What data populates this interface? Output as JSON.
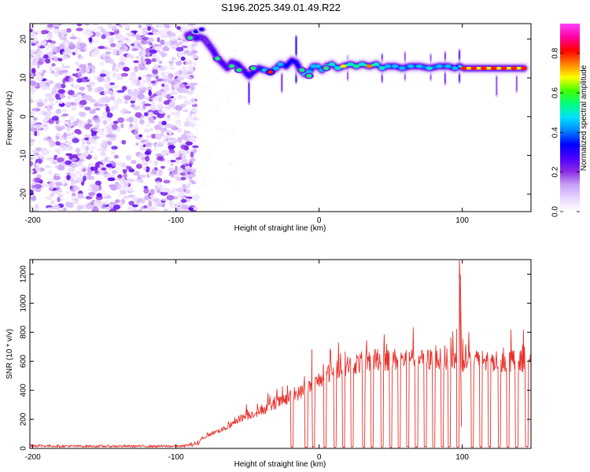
{
  "figure": {
    "title": "S196.2025.349.01.49.R22"
  },
  "chart_data": [
    {
      "type": "heatmap",
      "title": "S196.2025.349.01.49.R22",
      "xlabel": "Height of straight line (km)",
      "ylabel": "Frequency (Hz)",
      "xlim": [
        -202,
        148
      ],
      "ylim": [
        -24.5,
        24
      ],
      "xticks": [
        -200,
        -100,
        0,
        100
      ],
      "xtick_labels": [
        "-200",
        "-100",
        "0",
        "100"
      ],
      "yticks": [
        -20,
        -10,
        0,
        10,
        20
      ],
      "ytick_labels": [
        "-20",
        "-10",
        "0",
        "10",
        "20"
      ],
      "colorbar": {
        "label": "Normalized spectral amplitude",
        "range": [
          0,
          0.95
        ],
        "ticks": [
          0.0,
          0.2,
          0.4,
          0.6,
          0.8
        ],
        "tick_labels": [
          "0.0",
          "0.2",
          "0.4",
          "0.6",
          "0.8"
        ],
        "colormap": [
          "#ffffff",
          "#e8d6ff",
          "#c8a0f8",
          "#8a2be2",
          "#4b00ff",
          "#0000ff",
          "#0080ff",
          "#00e0ff",
          "#00ff80",
          "#40ff00",
          "#ffff00",
          "#ff8000",
          "#ff0000",
          "#ff00a0",
          "#ff40ff"
        ]
      },
      "noise_region": {
        "x_range": [
          -202,
          -92
        ],
        "y_range": [
          -24.5,
          24
        ],
        "mean_amplitude": 0.1
      },
      "ridge": [
        {
          "x": -92,
          "y": 21.0,
          "amp": 0.25
        },
        {
          "x": -88,
          "y": 21.5,
          "amp": 0.3
        },
        {
          "x": -86,
          "y": 20.2,
          "amp": 0.3
        },
        {
          "x": -83,
          "y": 20.5,
          "amp": 0.35
        },
        {
          "x": -80,
          "y": 20.0,
          "amp": 0.2
        },
        {
          "x": -77,
          "y": 18.5,
          "amp": 0.3
        },
        {
          "x": -74,
          "y": 17.0,
          "amp": 0.3
        },
        {
          "x": -71,
          "y": 15.0,
          "amp": 0.35
        },
        {
          "x": -68,
          "y": 14.0,
          "amp": 0.3
        },
        {
          "x": -64,
          "y": 12.5,
          "amp": 0.35
        },
        {
          "x": -61,
          "y": 14.0,
          "amp": 0.3
        },
        {
          "x": -57,
          "y": 13.5,
          "amp": 0.35
        },
        {
          "x": -53,
          "y": 12.0,
          "amp": 0.35
        },
        {
          "x": -49,
          "y": 10.5,
          "amp": 0.35
        },
        {
          "x": -46,
          "y": 11.5,
          "amp": 0.35
        },
        {
          "x": -42,
          "y": 12.5,
          "amp": 0.4
        },
        {
          "x": -38,
          "y": 12.0,
          "amp": 0.45
        },
        {
          "x": -34,
          "y": 11.5,
          "amp": 0.6
        },
        {
          "x": -30,
          "y": 12.5,
          "amp": 0.45
        },
        {
          "x": -27,
          "y": 13.5,
          "amp": 0.45
        },
        {
          "x": -23,
          "y": 13.0,
          "amp": 0.4
        },
        {
          "x": -19,
          "y": 14.5,
          "amp": 0.4
        },
        {
          "x": -16,
          "y": 14.0,
          "amp": 0.4
        },
        {
          "x": -13,
          "y": 12.0,
          "amp": 0.4
        },
        {
          "x": -10,
          "y": 11.0,
          "amp": 0.45
        },
        {
          "x": -7,
          "y": 11.5,
          "amp": 0.45
        },
        {
          "x": -4,
          "y": 13.0,
          "amp": 0.45
        },
        {
          "x": -1,
          "y": 13.0,
          "amp": 0.45
        },
        {
          "x": 2,
          "y": 12.0,
          "amp": 0.45
        },
        {
          "x": 5,
          "y": 13.0,
          "amp": 0.5
        },
        {
          "x": 9,
          "y": 13.5,
          "amp": 0.5
        },
        {
          "x": 13,
          "y": 12.5,
          "amp": 0.5
        },
        {
          "x": 17,
          "y": 13.0,
          "amp": 0.7
        },
        {
          "x": 22,
          "y": 13.5,
          "amp": 0.5
        },
        {
          "x": 26,
          "y": 13.0,
          "amp": 0.55
        },
        {
          "x": 30,
          "y": 13.5,
          "amp": 0.5
        },
        {
          "x": 35,
          "y": 13.0,
          "amp": 0.75
        },
        {
          "x": 40,
          "y": 13.5,
          "amp": 0.5
        },
        {
          "x": 44,
          "y": 12.5,
          "amp": 0.5
        },
        {
          "x": 48,
          "y": 13.0,
          "amp": 0.45
        },
        {
          "x": 53,
          "y": 13.0,
          "amp": 0.45
        },
        {
          "x": 58,
          "y": 12.5,
          "amp": 0.45
        },
        {
          "x": 64,
          "y": 13.0,
          "amp": 0.45
        },
        {
          "x": 70,
          "y": 13.0,
          "amp": 0.45
        },
        {
          "x": 77,
          "y": 12.5,
          "amp": 0.5
        },
        {
          "x": 84,
          "y": 13.0,
          "amp": 0.45
        },
        {
          "x": 90,
          "y": 13.0,
          "amp": 0.45
        },
        {
          "x": 95,
          "y": 12.5,
          "amp": 0.45
        },
        {
          "x": 98,
          "y": 13.0,
          "amp": 0.3
        },
        {
          "x": 101,
          "y": 12.5,
          "amp": 0.8
        },
        {
          "x": 108,
          "y": 12.5,
          "amp": 0.8
        },
        {
          "x": 115,
          "y": 12.5,
          "amp": 0.8
        },
        {
          "x": 122,
          "y": 12.5,
          "amp": 0.8
        },
        {
          "x": 129,
          "y": 12.5,
          "amp": 0.8
        },
        {
          "x": 136,
          "y": 12.5,
          "amp": 0.8
        },
        {
          "x": 143,
          "y": 12.5,
          "amp": 0.8
        }
      ],
      "ridge_blobs": [
        {
          "x": -90,
          "y": 20.3,
          "amp": 0.55
        },
        {
          "x": -86,
          "y": 22.0,
          "amp": 0.35
        },
        {
          "x": -82,
          "y": 22.5,
          "amp": 0.3
        },
        {
          "x": -71,
          "y": 15.0,
          "amp": 0.55
        },
        {
          "x": -61,
          "y": 13.0,
          "amp": 0.55
        },
        {
          "x": -56,
          "y": 12.0,
          "amp": 0.55
        },
        {
          "x": -46,
          "y": 12.5,
          "amp": 0.55
        },
        {
          "x": -34,
          "y": 11.5,
          "amp": 0.8
        },
        {
          "x": -12,
          "y": 12.0,
          "amp": 0.55
        },
        {
          "x": -7,
          "y": 10.5,
          "amp": 0.55
        },
        {
          "x": 5,
          "y": 12.5,
          "amp": 0.55
        }
      ],
      "spikes": [
        {
          "x": -16,
          "y_range": [
            8.5,
            21.0
          ],
          "amp": 0.35
        },
        {
          "x": 98,
          "y_range": [
            8.5,
            17.5
          ],
          "amp": 0.3
        },
        {
          "x": -49,
          "y_range": [
            3.0,
            10.5
          ],
          "amp": 0.3
        },
        {
          "x": -26,
          "y_range": [
            6.0,
            11.5
          ],
          "amp": 0.25
        },
        {
          "x": 44,
          "y_range": [
            8.5,
            16.5
          ],
          "amp": 0.25
        },
        {
          "x": 88,
          "y_range": [
            8.0,
            17.0
          ],
          "amp": 0.25
        },
        {
          "x": 124,
          "y_range": [
            5.0,
            11.0
          ],
          "amp": 0.2
        },
        {
          "x": 138,
          "y_range": [
            6.0,
            11.0
          ],
          "amp": 0.2
        },
        {
          "x": 60,
          "y_range": [
            9.0,
            17.0
          ],
          "amp": 0.2
        },
        {
          "x": 20,
          "y_range": [
            9.0,
            16.0
          ],
          "amp": 0.2
        },
        {
          "x": 78,
          "y_range": [
            9.0,
            16.5
          ],
          "amp": 0.2
        }
      ]
    },
    {
      "type": "line",
      "xlabel": "Height of straight line (km)",
      "ylabel": "SNR (10 * v/v)",
      "xlim": [
        -202,
        148
      ],
      "ylim": [
        0,
        1300
      ],
      "xticks": [
        -200,
        -100,
        0,
        100
      ],
      "xtick_labels": [
        "-200",
        "-100",
        "0",
        "100"
      ],
      "yticks": [
        0,
        200,
        400,
        600,
        800,
        1000,
        1200
      ],
      "ytick_labels": [
        "0",
        "200",
        "400",
        "600",
        "800",
        "1000",
        "1200"
      ],
      "series": [
        {
          "name": "SNR",
          "color": "#e8322c",
          "envelope": {
            "x": [
              -202,
              -190,
              -170,
              -150,
              -130,
              -110,
              -95,
              -85,
              -80,
              -75,
              -70,
              -65,
              -60,
              -55,
              -50,
              -45,
              -40,
              -35,
              -30,
              -25,
              -20,
              -15,
              -10,
              -5,
              0,
              5,
              10,
              15,
              20,
              25,
              30,
              35,
              40,
              45,
              50,
              60,
              70,
              80,
              90,
              95,
              100,
              110,
              120,
              130,
              140,
              148
            ],
            "y": [
              25,
              20,
              18,
              18,
              18,
              18,
              18,
              40,
              80,
              110,
              130,
              150,
              180,
              220,
              240,
              260,
              280,
              300,
              330,
              350,
              380,
              400,
              430,
              460,
              500,
              540,
              570,
              590,
              610,
              620,
              630,
              640,
              650,
              650,
              650,
              650,
              650,
              650,
              650,
              650,
              640,
              640,
              640,
              640,
              640,
              640
            ]
          },
          "dropouts_x": [
            -19,
            -9,
            -4,
            4,
            11,
            17,
            23,
            31,
            37,
            44,
            50,
            56,
            62,
            68,
            74,
            80,
            86,
            91,
            97,
            107,
            113,
            119,
            126,
            132,
            138,
            145
          ],
          "peak": {
            "x": 98,
            "y": 1300
          },
          "outliers": [
            {
              "x": -5,
              "y": 680
            },
            {
              "x": 3,
              "y": 580
            },
            {
              "x": 96,
              "y": 820
            }
          ]
        }
      ]
    }
  ]
}
